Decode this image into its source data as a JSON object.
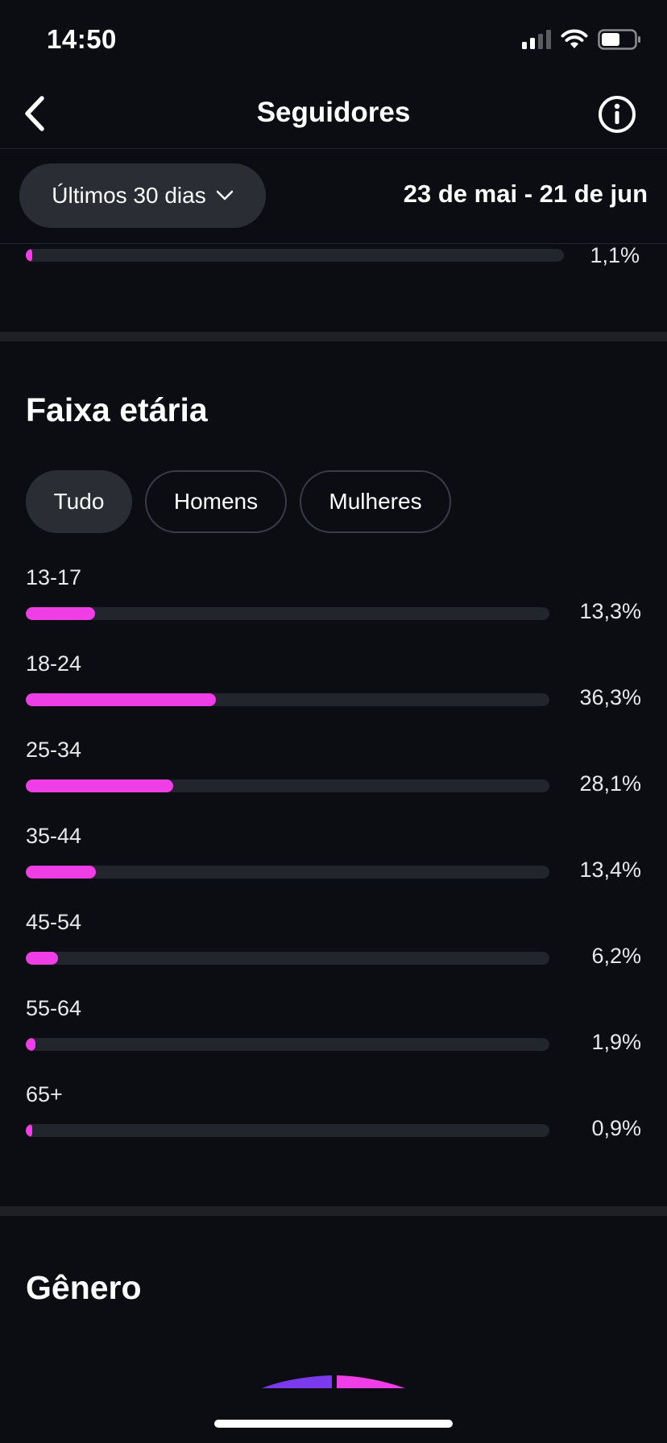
{
  "status_bar": {
    "time": "14:50"
  },
  "nav": {
    "title": "Seguidores"
  },
  "filter": {
    "period_label": "Últimos 30 dias",
    "date_range": "23 de mai - 21 de jun"
  },
  "previous_section": {
    "last_row": {
      "percent_label": "1,1%",
      "value": 1.1
    }
  },
  "age_section": {
    "title": "Faixa etária",
    "tabs": [
      {
        "label": "Tudo",
        "selected": true
      },
      {
        "label": "Homens",
        "selected": false
      },
      {
        "label": "Mulheres",
        "selected": false
      }
    ],
    "rows": [
      {
        "label": "13-17",
        "percent_label": "13,3%",
        "value": 13.3
      },
      {
        "label": "18-24",
        "percent_label": "36,3%",
        "value": 36.3
      },
      {
        "label": "25-34",
        "percent_label": "28,1%",
        "value": 28.1
      },
      {
        "label": "35-44",
        "percent_label": "13,4%",
        "value": 13.4
      },
      {
        "label": "45-54",
        "percent_label": "6,2%",
        "value": 6.2
      },
      {
        "label": "55-64",
        "percent_label": "1,9%",
        "value": 1.9
      },
      {
        "label": "65+",
        "percent_label": "0,9%",
        "value": 0.9
      }
    ]
  },
  "gender_section": {
    "title": "Gênero"
  },
  "colors": {
    "background": "#0b0d12",
    "bar_fill": "#f03ee6",
    "bar_track": "#22252c",
    "pill_background": "#2a2d34",
    "gender_primary": "#7c3aed",
    "gender_secondary": "#f03ee6"
  },
  "icons": {
    "back": "chevron-left-icon",
    "info": "info-circle-icon",
    "dropdown": "chevron-down-icon",
    "signal": "cellular-signal-icon",
    "wifi": "wifi-icon",
    "battery": "battery-icon"
  }
}
